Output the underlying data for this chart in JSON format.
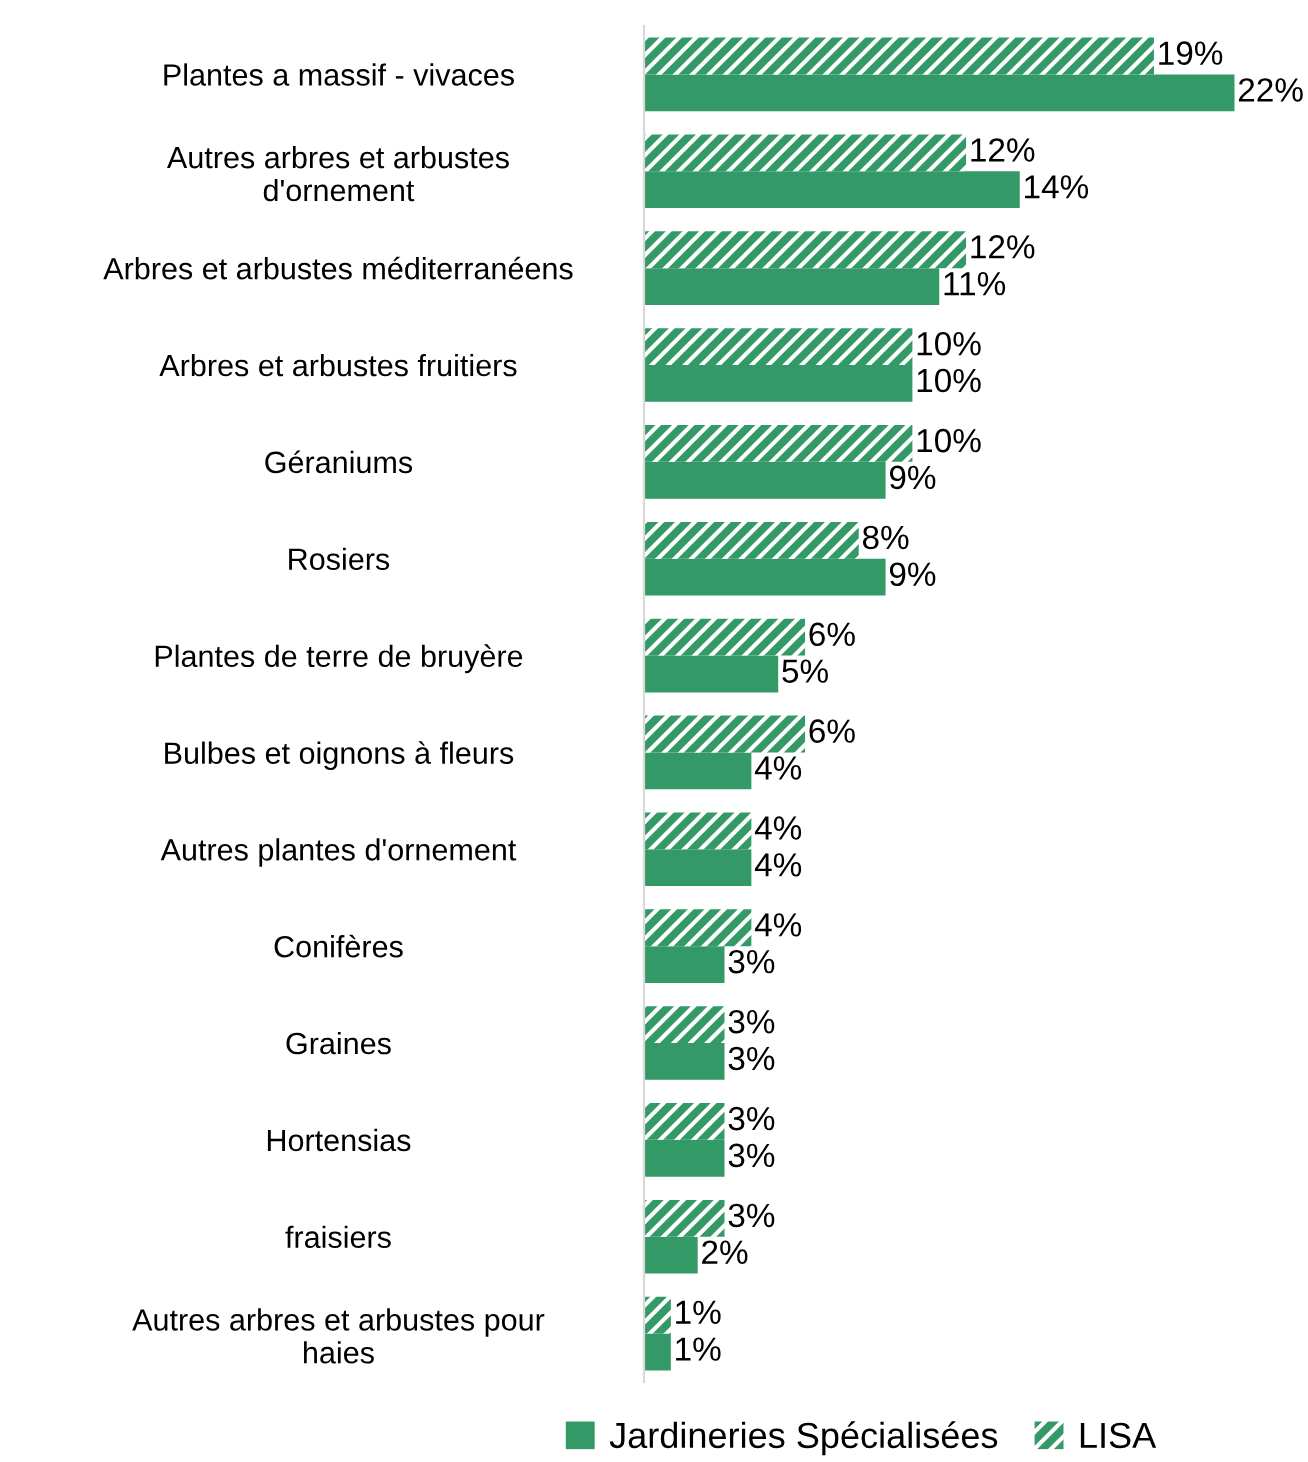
{
  "chart_data": {
    "type": "bar",
    "orientation": "horizontal",
    "legend": "bottom",
    "grid": false,
    "tick_labels": "y",
    "categories": [
      "Plantes a massif - vivaces",
      "Autres arbres et arbustes\nd'ornement",
      "Arbres et arbustes méditerranéens",
      "Arbres et arbustes fruitiers",
      "Géraniums",
      "Rosiers",
      "Plantes de terre de bruyère",
      "Bulbes et oignons à fleurs",
      "Autres plantes d'ornement",
      "Conifères",
      "Graines",
      "Hortensias",
      "fraisiers",
      "Autres arbres et arbustes pour\nhaies"
    ],
    "series": [
      {
        "name": "Jardineries Spécialisées",
        "color": "#339966",
        "values": [
          22,
          14,
          11,
          10,
          9,
          9,
          5,
          4,
          4,
          3,
          3,
          3,
          2,
          1
        ],
        "value_labels": [
          "22%",
          "14%",
          "11%",
          "10%",
          "9%",
          "9%",
          "5%",
          "4%",
          "4%",
          "3%",
          "3%",
          "3%",
          "2%",
          "1%"
        ]
      },
      {
        "name": "LISA",
        "color": "#339966",
        "values": [
          19,
          12,
          12,
          10,
          10,
          8,
          6,
          6,
          4,
          4,
          3,
          3,
          3,
          1
        ],
        "value_labels": [
          "19%",
          "12%",
          "12%",
          "10%",
          "10%",
          "8%",
          "6%",
          "6%",
          "4%",
          "4%",
          "3%",
          "3%",
          "3%",
          "1%"
        ]
      }
    ]
  }
}
